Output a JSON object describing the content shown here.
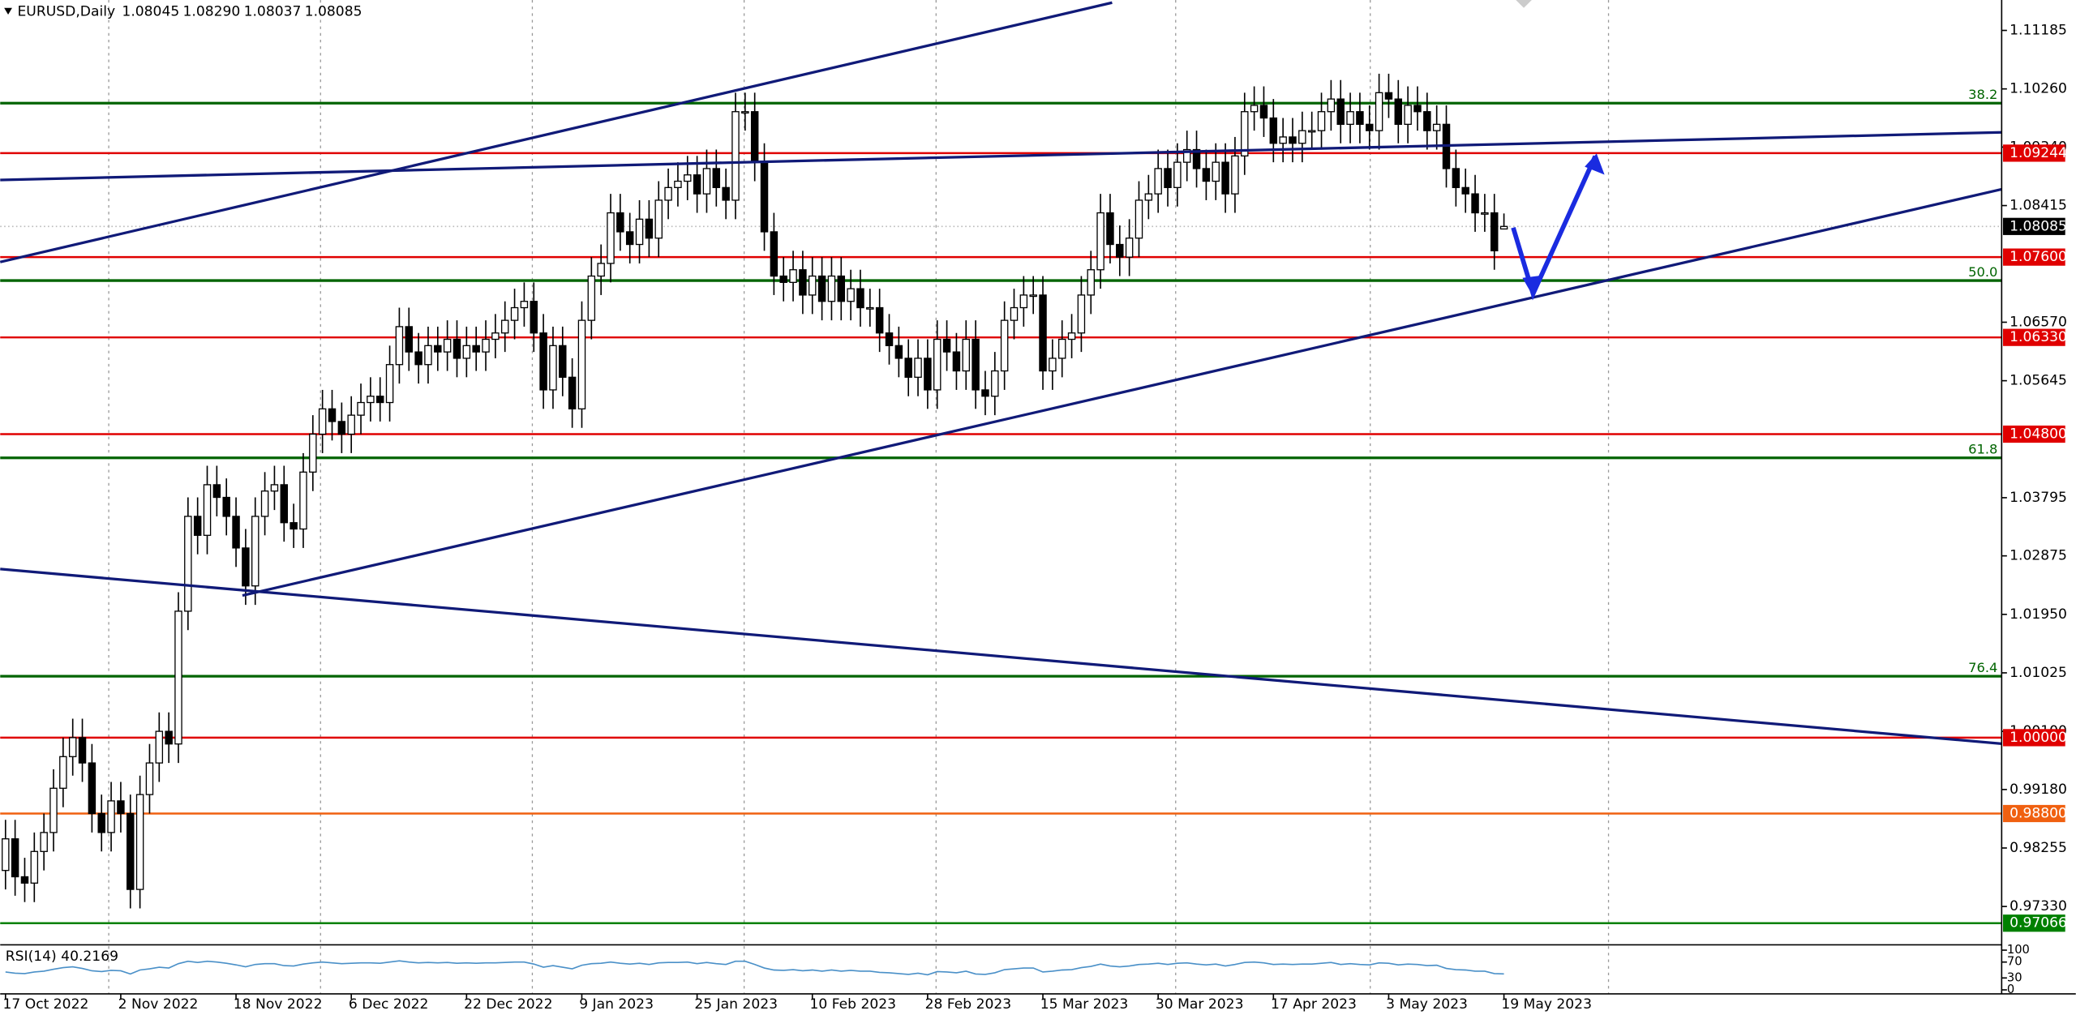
{
  "chart_data": {
    "type": "candlestick",
    "title": "EURUSD,Daily",
    "ohlc_labels": [
      "1.08045",
      "1.08290",
      "1.08037",
      "1.08085"
    ],
    "categories": [
      "17 Oct 2022",
      null,
      null,
      null,
      null,
      null,
      null,
      null,
      null,
      null,
      null,
      null,
      "2 Nov 2022",
      null,
      null,
      null,
      null,
      null,
      null,
      null,
      null,
      null,
      null,
      null,
      "18 Nov 2022",
      null,
      null,
      null,
      null,
      null,
      null,
      null,
      null,
      null,
      null,
      null,
      "6 Dec 2022",
      null,
      null,
      null,
      null,
      null,
      null,
      null,
      null,
      null,
      null,
      null,
      "22 Dec 2022",
      null,
      null,
      null,
      null,
      null,
      null,
      null,
      null,
      null,
      null,
      null,
      "9 Jan 2023",
      null,
      null,
      null,
      null,
      null,
      null,
      null,
      null,
      null,
      null,
      null,
      "25 Jan 2023",
      null,
      null,
      null,
      null,
      null,
      null,
      null,
      null,
      null,
      null,
      null,
      "10 Feb 2023",
      null,
      null,
      null,
      null,
      null,
      null,
      null,
      null,
      null,
      null,
      null,
      "28 Feb 2023",
      null,
      null,
      null,
      null,
      null,
      null,
      null,
      null,
      null,
      null,
      null,
      "15 Mar 2023",
      null,
      null,
      null,
      null,
      null,
      null,
      null,
      null,
      null,
      null,
      null,
      "30 Mar 2023",
      null,
      null,
      null,
      null,
      null,
      null,
      null,
      null,
      null,
      null,
      null,
      "17 Apr 2023",
      null,
      null,
      null,
      null,
      null,
      null,
      null,
      null,
      null,
      null,
      null,
      "3 May 2023",
      null,
      null,
      null,
      null,
      null,
      null,
      null,
      null,
      null,
      null,
      null,
      "19 May 2023"
    ],
    "open": [
      0.979,
      0.984,
      0.978,
      0.977,
      0.982,
      0.985,
      0.992,
      0.997,
      1.0,
      0.996,
      0.988,
      0.985,
      0.99,
      0.988,
      0.976,
      0.991,
      0.996,
      1.001,
      0.999,
      1.02,
      1.035,
      1.032,
      1.04,
      1.038,
      1.035,
      1.03,
      1.024,
      1.035,
      1.039,
      1.04,
      1.034,
      1.033,
      1.042,
      1.048,
      1.052,
      1.05,
      1.048,
      1.051,
      1.053,
      1.054,
      1.053,
      1.059,
      1.065,
      1.061,
      1.059,
      1.062,
      1.061,
      1.063,
      1.06,
      1.062,
      1.061,
      1.063,
      1.064,
      1.066,
      1.068,
      1.069,
      1.064,
      1.055,
      1.062,
      1.057,
      1.052,
      1.066,
      1.073,
      1.075,
      1.083,
      1.08,
      1.078,
      1.082,
      1.079,
      1.085,
      1.087,
      1.088,
      1.089,
      1.086,
      1.09,
      1.087,
      1.085,
      1.099,
      1.099,
      1.091,
      1.08,
      1.073,
      1.072,
      1.074,
      1.07,
      1.073,
      1.069,
      1.073,
      1.069,
      1.071,
      1.068,
      1.068,
      1.064,
      1.062,
      1.06,
      1.057,
      1.06,
      1.055,
      1.063,
      1.061,
      1.058,
      1.063,
      1.055,
      1.054,
      1.058,
      1.066,
      1.068,
      1.07,
      1.07,
      1.058,
      1.06,
      1.063,
      1.064,
      1.07,
      1.074,
      1.083,
      1.078,
      1.076,
      1.079,
      1.085,
      1.086,
      1.09,
      1.087,
      1.091,
      1.093,
      1.09,
      1.088,
      1.091,
      1.086,
      1.092,
      1.099,
      1.1,
      1.098,
      1.094,
      1.095,
      1.094,
      1.096,
      1.096,
      1.099,
      1.101,
      1.097,
      1.099,
      1.097,
      1.096,
      1.102,
      1.101,
      1.097,
      1.1,
      1.099,
      1.096,
      1.097,
      1.09,
      1.087,
      1.086,
      1.083,
      1.083,
      1.08045
    ],
    "high": [
      0.987,
      0.987,
      0.981,
      0.985,
      0.988,
      0.995,
      1.0,
      1.003,
      1.003,
      0.999,
      0.991,
      0.993,
      0.993,
      0.991,
      0.994,
      0.999,
      1.004,
      1.004,
      1.023,
      1.038,
      1.038,
      1.043,
      1.043,
      1.041,
      1.038,
      1.033,
      1.038,
      1.042,
      1.043,
      1.043,
      1.037,
      1.045,
      1.051,
      1.055,
      1.055,
      1.053,
      1.054,
      1.056,
      1.057,
      1.057,
      1.062,
      1.068,
      1.068,
      1.064,
      1.065,
      1.065,
      1.066,
      1.066,
      1.065,
      1.065,
      1.066,
      1.067,
      1.069,
      1.071,
      1.072,
      1.072,
      1.067,
      1.065,
      1.065,
      1.06,
      1.069,
      1.076,
      1.078,
      1.086,
      1.086,
      1.083,
      1.085,
      1.085,
      1.088,
      1.09,
      1.091,
      1.092,
      1.092,
      1.093,
      1.093,
      1.09,
      1.102,
      1.102,
      1.102,
      1.094,
      1.083,
      1.076,
      1.077,
      1.077,
      1.076,
      1.076,
      1.076,
      1.076,
      1.074,
      1.074,
      1.071,
      1.071,
      1.067,
      1.065,
      1.063,
      1.063,
      1.063,
      1.066,
      1.066,
      1.064,
      1.066,
      1.066,
      1.058,
      1.061,
      1.069,
      1.071,
      1.073,
      1.073,
      1.073,
      1.063,
      1.066,
      1.067,
      1.073,
      1.077,
      1.086,
      1.086,
      1.081,
      1.082,
      1.088,
      1.089,
      1.093,
      1.093,
      1.094,
      1.096,
      1.096,
      1.093,
      1.094,
      1.094,
      1.095,
      1.102,
      1.103,
      1.103,
      1.101,
      1.098,
      1.098,
      1.099,
      1.099,
      1.102,
      1.104,
      1.104,
      1.102,
      1.102,
      1.1,
      1.105,
      1.105,
      1.104,
      1.103,
      1.103,
      1.102,
      1.1,
      1.1,
      1.093,
      1.09,
      1.089,
      1.086,
      1.086,
      1.0829
    ],
    "low": [
      0.976,
      0.975,
      0.974,
      0.974,
      0.979,
      0.982,
      0.989,
      0.994,
      0.993,
      0.985,
      0.982,
      0.982,
      0.985,
      0.973,
      0.973,
      0.988,
      0.993,
      0.996,
      0.996,
      1.017,
      1.029,
      1.029,
      1.035,
      1.032,
      1.027,
      1.021,
      1.021,
      1.032,
      1.036,
      1.031,
      1.03,
      1.03,
      1.039,
      1.045,
      1.047,
      1.045,
      1.045,
      1.048,
      1.05,
      1.05,
      1.05,
      1.056,
      1.058,
      1.056,
      1.056,
      1.058,
      1.058,
      1.057,
      1.057,
      1.058,
      1.058,
      1.06,
      1.061,
      1.063,
      1.065,
      1.061,
      1.052,
      1.052,
      1.054,
      1.049,
      1.049,
      1.063,
      1.07,
      1.072,
      1.077,
      1.075,
      1.075,
      1.076,
      1.076,
      1.082,
      1.084,
      1.085,
      1.083,
      1.083,
      1.084,
      1.082,
      1.082,
      1.096,
      1.088,
      1.077,
      1.07,
      1.069,
      1.069,
      1.067,
      1.067,
      1.066,
      1.066,
      1.066,
      1.066,
      1.065,
      1.065,
      1.061,
      1.059,
      1.057,
      1.054,
      1.054,
      1.052,
      1.052,
      1.058,
      1.055,
      1.055,
      1.052,
      1.051,
      1.051,
      1.055,
      1.063,
      1.065,
      1.067,
      1.055,
      1.055,
      1.057,
      1.06,
      1.061,
      1.067,
      1.071,
      1.075,
      1.073,
      1.073,
      1.076,
      1.082,
      1.083,
      1.084,
      1.084,
      1.088,
      1.087,
      1.085,
      1.085,
      1.083,
      1.083,
      1.089,
      1.096,
      1.095,
      1.091,
      1.091,
      1.091,
      1.091,
      1.093,
      1.093,
      1.096,
      1.094,
      1.094,
      1.094,
      1.093,
      1.093,
      1.098,
      1.094,
      1.094,
      1.096,
      1.093,
      1.093,
      1.087,
      1.084,
      1.083,
      1.08,
      1.08,
      1.074,
      1.08037
    ],
    "close": [
      0.984,
      0.978,
      0.977,
      0.982,
      0.985,
      0.992,
      0.997,
      1.0,
      0.996,
      0.988,
      0.985,
      0.99,
      0.988,
      0.976,
      0.991,
      0.996,
      1.001,
      0.999,
      1.02,
      1.035,
      1.032,
      1.04,
      1.038,
      1.035,
      1.03,
      1.024,
      1.035,
      1.039,
      1.04,
      1.034,
      1.033,
      1.042,
      1.048,
      1.052,
      1.05,
      1.048,
      1.051,
      1.053,
      1.054,
      1.053,
      1.059,
      1.065,
      1.061,
      1.059,
      1.062,
      1.061,
      1.063,
      1.06,
      1.062,
      1.061,
      1.063,
      1.064,
      1.066,
      1.068,
      1.069,
      1.064,
      1.055,
      1.062,
      1.057,
      1.052,
      1.066,
      1.073,
      1.075,
      1.083,
      1.08,
      1.078,
      1.082,
      1.079,
      1.085,
      1.087,
      1.088,
      1.089,
      1.086,
      1.09,
      1.087,
      1.085,
      1.099,
      1.099,
      1.091,
      1.08,
      1.073,
      1.072,
      1.074,
      1.07,
      1.073,
      1.069,
      1.073,
      1.069,
      1.071,
      1.068,
      1.068,
      1.064,
      1.062,
      1.06,
      1.057,
      1.06,
      1.055,
      1.063,
      1.061,
      1.058,
      1.063,
      1.055,
      1.054,
      1.058,
      1.066,
      1.068,
      1.07,
      1.07,
      1.058,
      1.06,
      1.063,
      1.064,
      1.07,
      1.074,
      1.083,
      1.078,
      1.076,
      1.079,
      1.085,
      1.086,
      1.09,
      1.087,
      1.091,
      1.093,
      1.09,
      1.088,
      1.091,
      1.086,
      1.092,
      1.099,
      1.1,
      1.098,
      1.094,
      1.095,
      1.094,
      1.096,
      1.096,
      1.099,
      1.101,
      1.097,
      1.099,
      1.097,
      1.096,
      1.102,
      1.101,
      1.097,
      1.1,
      1.099,
      1.096,
      1.097,
      1.09,
      1.087,
      1.086,
      1.083,
      1.083,
      1.077,
      1.08085
    ],
    "up_color": "#ffffff",
    "down_color": "#000000",
    "ylim": [
      0.96744,
      1.11666
    ],
    "yticks": [
      1.11185,
      {
        "value": 1.1026,
        "label": "1.10260"
      },
      {
        "value": 1.0934,
        "label": "1.09340"
      },
      1.08415,
      {
        "value": 1.0657,
        "label": "1.06570"
      },
      1.05645,
      1.03795,
      1.02875,
      {
        "value": 1.0195,
        "label": "1.01950"
      },
      1.01025,
      {
        "value": 1.001,
        "label": "1.00100"
      },
      {
        "value": 0.9918,
        "label": "0.99180"
      },
      0.98255,
      {
        "value": 0.9733,
        "label": "0.97330"
      }
    ],
    "levels": [
      {
        "value": 1.09244,
        "label": "1.09244",
        "color": "#e00000"
      },
      {
        "value": 1.076,
        "label": "1.07600",
        "color": "#e00000"
      },
      {
        "value": 1.0633,
        "label": "1.06330",
        "color": "#e00000"
      },
      {
        "value": 1.048,
        "label": "1.04800",
        "color": "#e00000"
      },
      {
        "value": 1,
        "label": "1.00000",
        "color": "#e00000"
      },
      {
        "value": 0.988,
        "label": "0.98800",
        "color": "#f06010"
      },
      {
        "value": 0.97066,
        "label": "0.97066",
        "color": "#008000"
      }
    ],
    "fib_levels": [
      {
        "value": 1.10034,
        "label": "38.2"
      },
      {
        "value": 1.07229,
        "label": "50.0"
      },
      {
        "value": 1.04425,
        "label": "61.8"
      },
      {
        "value": 1.00972,
        "label": "76.4"
      }
    ],
    "fib_color": "#006400",
    "current_price": {
      "value": 1.08085,
      "label": "1.08085"
    },
    "rsi": {
      "label": "RSI(14) 40.2169",
      "color": "#4a90c8",
      "ylim": [
        0,
        100
      ],
      "yticks": [
        100,
        70,
        30,
        0
      ],
      "values": [
        45,
        42,
        41,
        45,
        47,
        52,
        56,
        58,
        54,
        48,
        46,
        49,
        48,
        40,
        50,
        53,
        57,
        55,
        66,
        72,
        69,
        72,
        70,
        67,
        63,
        58,
        64,
        66,
        66,
        61,
        60,
        65,
        68,
        70,
        68,
        66,
        67,
        68,
        68,
        67,
        70,
        73,
        70,
        68,
        69,
        68,
        69,
        67,
        68,
        67,
        68,
        68,
        69,
        70,
        70,
        65,
        57,
        61,
        57,
        53,
        62,
        66,
        67,
        70,
        67,
        65,
        67,
        64,
        68,
        69,
        69,
        70,
        66,
        69,
        66,
        64,
        72,
        72,
        64,
        55,
        50,
        49,
        51,
        48,
        50,
        47,
        50,
        47,
        49,
        47,
        47,
        44,
        43,
        41,
        39,
        42,
        38,
        46,
        45,
        43,
        47,
        40,
        39,
        43,
        51,
        53,
        55,
        55,
        45,
        47,
        50,
        51,
        56,
        59,
        65,
        60,
        58,
        60,
        64,
        65,
        67,
        64,
        67,
        68,
        65,
        63,
        65,
        60,
        64,
        69,
        70,
        68,
        64,
        65,
        64,
        65,
        65,
        67,
        69,
        64,
        66,
        64,
        63,
        68,
        67,
        63,
        65,
        64,
        61,
        62,
        54,
        51,
        50,
        47,
        47,
        41,
        40.2169
      ]
    }
  }
}
